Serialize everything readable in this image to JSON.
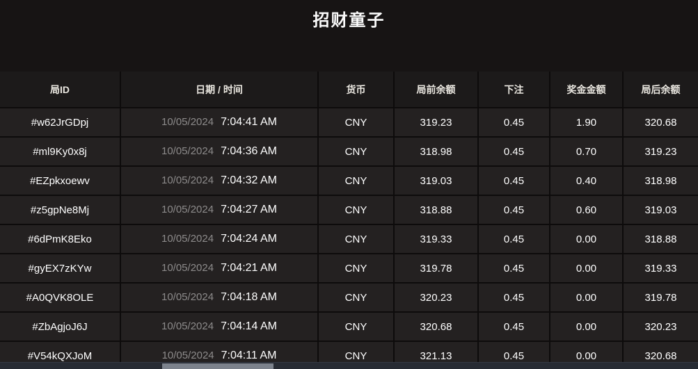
{
  "page": {
    "title": "招财童子"
  },
  "table": {
    "columns": [
      {
        "key": "round-id",
        "label": "局ID"
      },
      {
        "key": "datetime",
        "label": "日期 / 时间"
      },
      {
        "key": "currency",
        "label": "货币"
      },
      {
        "key": "balance-before",
        "label": "局前余额"
      },
      {
        "key": "bet",
        "label": "下注"
      },
      {
        "key": "prize",
        "label": "奖金金额"
      },
      {
        "key": "balance-after",
        "label": "局后余额"
      }
    ],
    "rows": [
      {
        "round_id": "#w62JrGDpj",
        "date": "10/05/2024",
        "time": "7:04:41 AM",
        "currency": "CNY",
        "balance_before": "319.23",
        "bet": "0.45",
        "prize": "1.90",
        "balance_after": "320.68"
      },
      {
        "round_id": "#ml9Ky0x8j",
        "date": "10/05/2024",
        "time": "7:04:36 AM",
        "currency": "CNY",
        "balance_before": "318.98",
        "bet": "0.45",
        "prize": "0.70",
        "balance_after": "319.23"
      },
      {
        "round_id": "#EZpkxoewv",
        "date": "10/05/2024",
        "time": "7:04:32 AM",
        "currency": "CNY",
        "balance_before": "319.03",
        "bet": "0.45",
        "prize": "0.40",
        "balance_after": "318.98"
      },
      {
        "round_id": "#z5gpNe8Mj",
        "date": "10/05/2024",
        "time": "7:04:27 AM",
        "currency": "CNY",
        "balance_before": "318.88",
        "bet": "0.45",
        "prize": "0.60",
        "balance_after": "319.03"
      },
      {
        "round_id": "#6dPmK8Eko",
        "date": "10/05/2024",
        "time": "7:04:24 AM",
        "currency": "CNY",
        "balance_before": "319.33",
        "bet": "0.45",
        "prize": "0.00",
        "balance_after": "318.88"
      },
      {
        "round_id": "#gyEX7zKYw",
        "date": "10/05/2024",
        "time": "7:04:21 AM",
        "currency": "CNY",
        "balance_before": "319.78",
        "bet": "0.45",
        "prize": "0.00",
        "balance_after": "319.33"
      },
      {
        "round_id": "#A0QVK8OLE",
        "date": "10/05/2024",
        "time": "7:04:18 AM",
        "currency": "CNY",
        "balance_before": "320.23",
        "bet": "0.45",
        "prize": "0.00",
        "balance_after": "319.78"
      },
      {
        "round_id": "#ZbAgjoJ6J",
        "date": "10/05/2024",
        "time": "7:04:14 AM",
        "currency": "CNY",
        "balance_before": "320.68",
        "bet": "0.45",
        "prize": "0.00",
        "balance_after": "320.23"
      },
      {
        "round_id": "#V54kQXJoM",
        "date": "10/05/2024",
        "time": "7:04:11 AM",
        "currency": "CNY",
        "balance_before": "321.13",
        "bet": "0.45",
        "prize": "0.00",
        "balance_after": "320.68"
      }
    ]
  },
  "colors": {
    "page_background": "#171414",
    "row_background": "#242121",
    "header_background": "#1c1a1a",
    "separator": "#0d0b0b",
    "date_text": "#8d8b8b",
    "primary_text": "#ffffff",
    "scrollbar_track": "#272b33",
    "scrollbar_thumb": "#7c828c"
  }
}
